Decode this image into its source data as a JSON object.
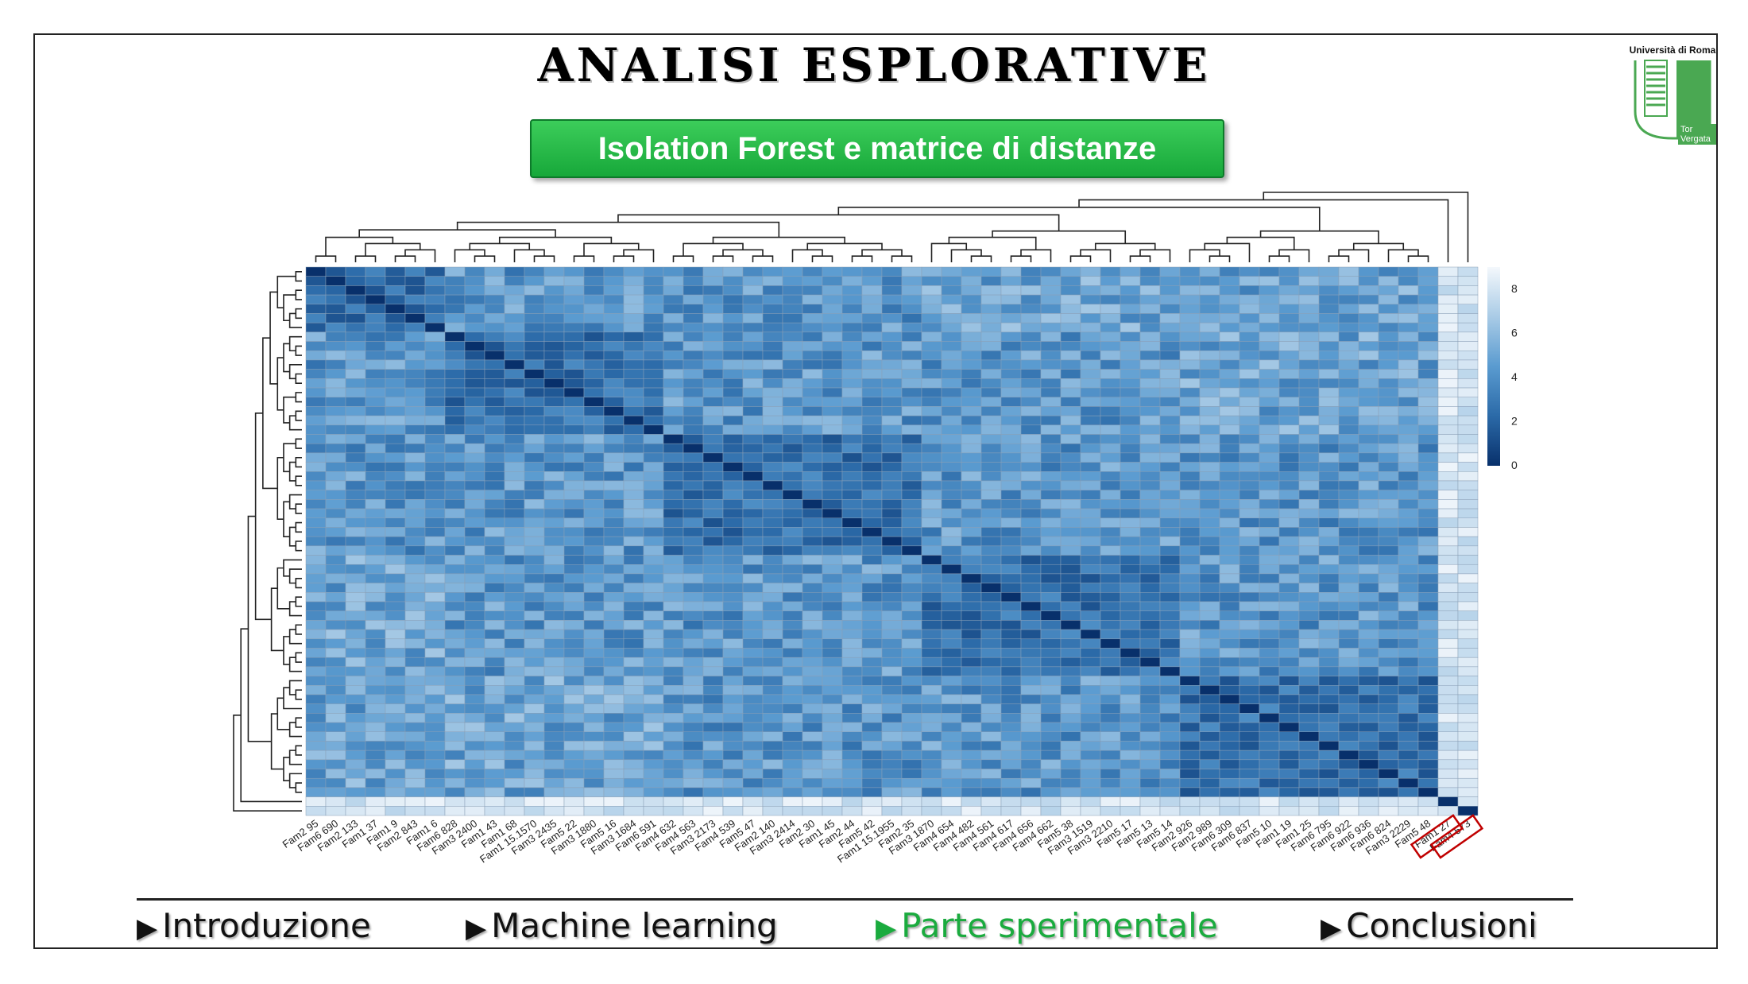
{
  "slide": {
    "title": "ANALISI ESPLORATIVE",
    "subtitle": "Isolation Forest e matrice di distanze",
    "logo": {
      "line1": "Università di Roma",
      "line2": "Tor Vergata",
      "color": "#4aa852"
    }
  },
  "nav": {
    "items": [
      {
        "label": "Introduzione",
        "active": false
      },
      {
        "label": "Machine learning",
        "active": false
      },
      {
        "label": "Parte sperimentale",
        "active": true
      },
      {
        "label": "Conclusioni",
        "active": false
      }
    ],
    "active_color": "#1aab3e",
    "arrow_icon": "triangle-right-icon"
  },
  "chart_data": {
    "type": "heatmap",
    "title": "",
    "labels": [
      "Fam2_95",
      "Fam6_690",
      "Fam2_133",
      "Fam1_37",
      "Fam1_9",
      "Fam2_843",
      "Fam1_6",
      "Fam6_828",
      "Fam3_2400",
      "Fam1_43",
      "Fam1_68",
      "Fam1_15.1570",
      "Fam3_2435",
      "Fam5_22",
      "Fam3_1880",
      "Fam5_16",
      "Fam3_1684",
      "Fam6_591",
      "Fam4_632",
      "Fam4_563",
      "Fam3_2173",
      "Fam4_539",
      "Fam5_47",
      "Fam2_140",
      "Fam3_2414",
      "Fam2_30",
      "Fam1_45",
      "Fam2_44",
      "Fam5_42",
      "Fam1_15.1955",
      "Fam2_35",
      "Fam3_1870",
      "Fam4_654",
      "Fam4_482",
      "Fam4_561",
      "Fam4_617",
      "Fam4_656",
      "Fam4_662",
      "Fam5_38",
      "Fam3_1519",
      "Fam3_2210",
      "Fam5_17",
      "Fam5_13",
      "Fam5_14",
      "Fam2_926",
      "Fam2_989",
      "Fam6_309",
      "Fam6_837",
      "Fam5_10",
      "Fam1_19",
      "Fam1_25",
      "Fam6_795",
      "Fam6_922",
      "Fam6_936",
      "Fam6_824",
      "Fam3_2229",
      "Fam5_48",
      "Fam1_27",
      "Fam4_573"
    ],
    "highlighted_labels": [
      "Fam1_27",
      "Fam4_573"
    ],
    "highlight_color": "#c00000",
    "colorbar": {
      "ticks": [
        "0",
        "2",
        "4",
        "6",
        "8"
      ],
      "min": 0,
      "max": 9,
      "colors": [
        "#08306b",
        "#2b6aa8",
        "#5a9bd0",
        "#a9cbe6",
        "#f4f8fc"
      ]
    },
    "dendrograms": {
      "top": true,
      "left": true
    },
    "clusters": [
      7,
      11,
      13,
      13,
      13
    ]
  }
}
